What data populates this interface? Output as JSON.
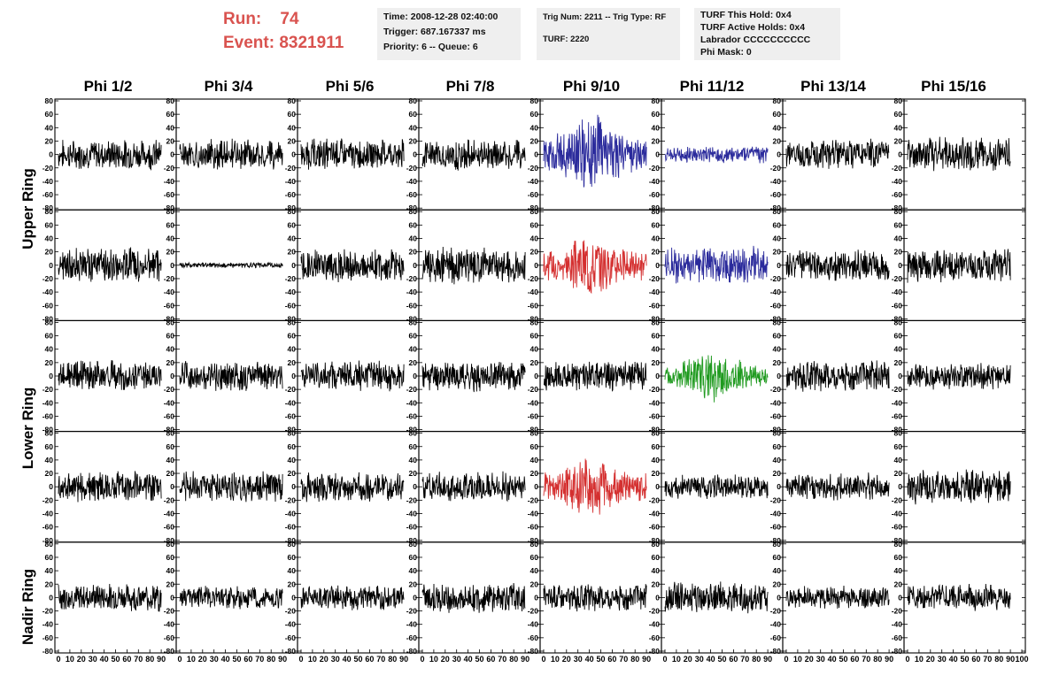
{
  "header": {
    "run_label": "Run:",
    "run_value": "74",
    "event_label": "Event:",
    "event_value": "8321911",
    "time": "Time: 2008-12-28 02:40:00",
    "trigger": "Trigger: 687.167337 ms",
    "priority": "Priority: 6 -- Queue: 6",
    "trig_num": "Trig Num: 2211 -- Trig Type: RF",
    "turf": "TURF: 2220",
    "turf_this_hold": "TURF This Hold: 0x4",
    "turf_active_holds": "TURF Active Holds: 0x4",
    "labrador": "Labrador CCCCCCCCCC",
    "phi_mask": "Phi Mask: 0"
  },
  "columns": [
    "Phi 1/2",
    "Phi 3/4",
    "Phi 5/6",
    "Phi 7/8",
    "Phi 9/10",
    "Phi 11/12",
    "Phi 13/14",
    "Phi 15/16"
  ],
  "ring_labels": [
    "Upper Ring",
    "Lower Ring",
    "Nadir Ring"
  ],
  "chart_data": {
    "type": "line",
    "ylim": [
      -80,
      80
    ],
    "xlim": [
      0,
      100
    ],
    "yticks": [
      -80,
      -60,
      -40,
      -20,
      0,
      20,
      40,
      60,
      80
    ],
    "xticks": [
      0,
      10,
      20,
      30,
      40,
      50,
      60,
      70,
      80,
      90,
      100
    ],
    "rows": 5,
    "cols": 8,
    "highlight_colors": {
      "blue": "#2b2b9c",
      "red": "#d43030",
      "green": "#1f9a1f",
      "default": "#000000"
    },
    "panels": [
      {
        "row": 0,
        "col": 4,
        "color": "blue"
      },
      {
        "row": 0,
        "col": 5,
        "color": "blue"
      },
      {
        "row": 1,
        "col": 4,
        "color": "red"
      },
      {
        "row": 1,
        "col": 5,
        "color": "blue"
      },
      {
        "row": 2,
        "col": 5,
        "color": "green"
      },
      {
        "row": 3,
        "col": 4,
        "color": "red"
      }
    ],
    "amplitudes": [
      [
        18,
        18,
        18,
        18,
        38,
        10,
        18,
        20
      ],
      [
        20,
        3,
        20,
        22,
        30,
        22,
        18,
        20
      ],
      [
        18,
        18,
        18,
        18,
        18,
        24,
        18,
        16
      ],
      [
        18,
        18,
        18,
        18,
        30,
        14,
        16,
        20
      ],
      [
        16,
        14,
        14,
        18,
        16,
        18,
        14,
        16
      ]
    ]
  }
}
